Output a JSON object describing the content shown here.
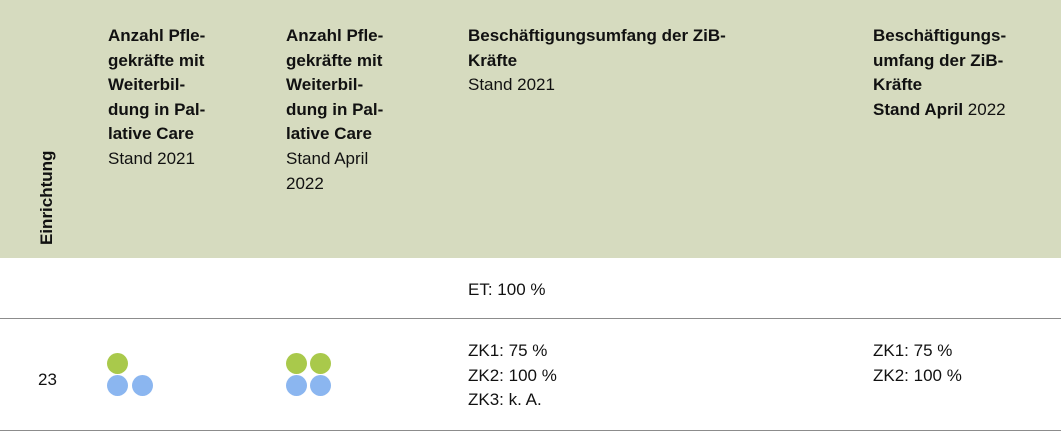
{
  "header": {
    "row_label": "Einrichtung",
    "columns": [
      {
        "lines": [
          "Anzahl Pfle-",
          "gekräfte mit",
          "Weiterbil-",
          "dung in Pal-",
          "lative Care"
        ],
        "stand": [
          "Stand 2021"
        ]
      },
      {
        "lines": [
          "Anzahl Pfle-",
          "gekräfte mit",
          "Weiterbil-",
          "dung in Pal-",
          "lative Care"
        ],
        "stand": [
          "Stand April",
          "2022"
        ]
      },
      {
        "lines": [
          "Beschäftigungsumfang der ZiB-",
          "Kräfte"
        ],
        "stand": [
          "Stand 2021"
        ]
      },
      {
        "lines": [
          "Beschäftigungs-",
          "umfang der ZiB-",
          "Kräfte"
        ],
        "stand_bold": "Stand April",
        "stand": [
          "2022"
        ]
      }
    ]
  },
  "rows": [
    {
      "beschaeftigung_2021": [
        "ET: 100 %"
      ]
    },
    {
      "einrichtung": "23",
      "beschaeftigung_2021": [
        "ZK1: 75 %",
        "ZK2: 100 %",
        "ZK3: k. A."
      ],
      "beschaeftigung_2022": [
        "ZK1: 75 %",
        "ZK2: 100 %"
      ]
    }
  ]
}
